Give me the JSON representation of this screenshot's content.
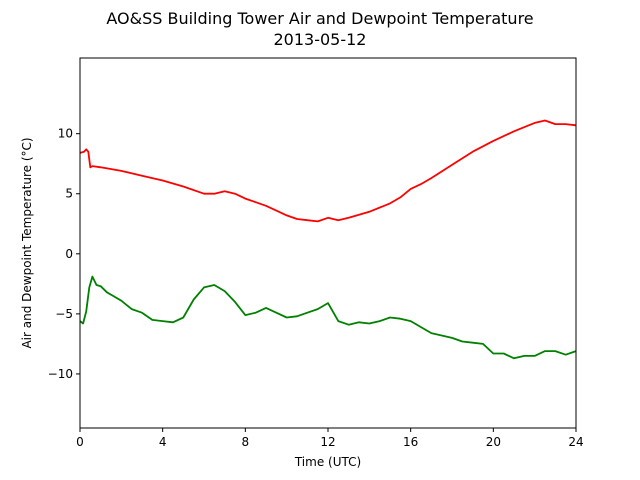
{
  "chart_data": {
    "type": "line",
    "title": "AO&SS Building Tower Air and Dewpoint Temperature",
    "subtitle": "2013-05-12",
    "xlabel": "Time (UTC)",
    "ylabel": "Air and Dewpoint Temperature (°C)",
    "xlim": [
      0,
      24
    ],
    "ylim": [
      -14.5,
      16.3
    ],
    "xticks": [
      0,
      4,
      8,
      12,
      16,
      20,
      24
    ],
    "yticks": [
      -10,
      -5,
      0,
      5,
      10
    ],
    "grid": false,
    "legend": "none",
    "series": [
      {
        "color": "#ff0000",
        "x": [
          0,
          0.2,
          0.3,
          0.4,
          0.5,
          0.6,
          1,
          2,
          3,
          4,
          5,
          6,
          6.5,
          7,
          7.5,
          8,
          8.5,
          9,
          9.5,
          10,
          10.5,
          11,
          11.5,
          12,
          12.5,
          13,
          14,
          15,
          15.5,
          16,
          16.5,
          17,
          18,
          19,
          20,
          21,
          22,
          22.5,
          23,
          23.5,
          24
        ],
        "y": [
          8.4,
          8.5,
          8.7,
          8.5,
          7.2,
          7.3,
          7.2,
          6.9,
          6.5,
          6.1,
          5.6,
          5.0,
          5.0,
          5.2,
          5.0,
          4.6,
          4.3,
          4.0,
          3.6,
          3.2,
          2.9,
          2.8,
          2.7,
          3.0,
          2.8,
          3.0,
          3.5,
          4.2,
          4.7,
          5.4,
          5.8,
          6.3,
          7.4,
          8.5,
          9.4,
          10.2,
          10.9,
          11.1,
          10.8,
          10.8,
          10.7
        ]
      },
      {
        "color": "#008000",
        "x": [
          0,
          0.15,
          0.3,
          0.45,
          0.6,
          0.8,
          1,
          1.3,
          1.6,
          2,
          2.5,
          3,
          3.5,
          4,
          4.5,
          5,
          5.5,
          6,
          6.5,
          7,
          7.5,
          8,
          8.5,
          9,
          9.5,
          10,
          10.5,
          11,
          11.5,
          12,
          12.5,
          13,
          13.5,
          14,
          14.5,
          15,
          15.5,
          16,
          16.5,
          17,
          17.5,
          18,
          18.5,
          19,
          19.5,
          20,
          20.5,
          21,
          21.5,
          22,
          22.5,
          23,
          23.5,
          24
        ],
        "y": [
          -5.6,
          -5.8,
          -4.8,
          -2.8,
          -1.9,
          -2.6,
          -2.7,
          -3.2,
          -3.5,
          -3.9,
          -4.6,
          -4.9,
          -5.5,
          -5.6,
          -5.7,
          -5.3,
          -3.8,
          -2.8,
          -2.6,
          -3.1,
          -4.0,
          -5.1,
          -4.9,
          -4.5,
          -4.9,
          -5.3,
          -5.2,
          -4.9,
          -4.6,
          -4.1,
          -5.6,
          -5.9,
          -5.7,
          -5.8,
          -5.6,
          -5.3,
          -5.4,
          -5.6,
          -6.1,
          -6.6,
          -6.8,
          -7.0,
          -7.3,
          -7.4,
          -7.5,
          -8.3,
          -8.3,
          -8.7,
          -8.5,
          -8.5,
          -8.1,
          -8.1,
          -8.4,
          -8.1
        ]
      }
    ]
  }
}
